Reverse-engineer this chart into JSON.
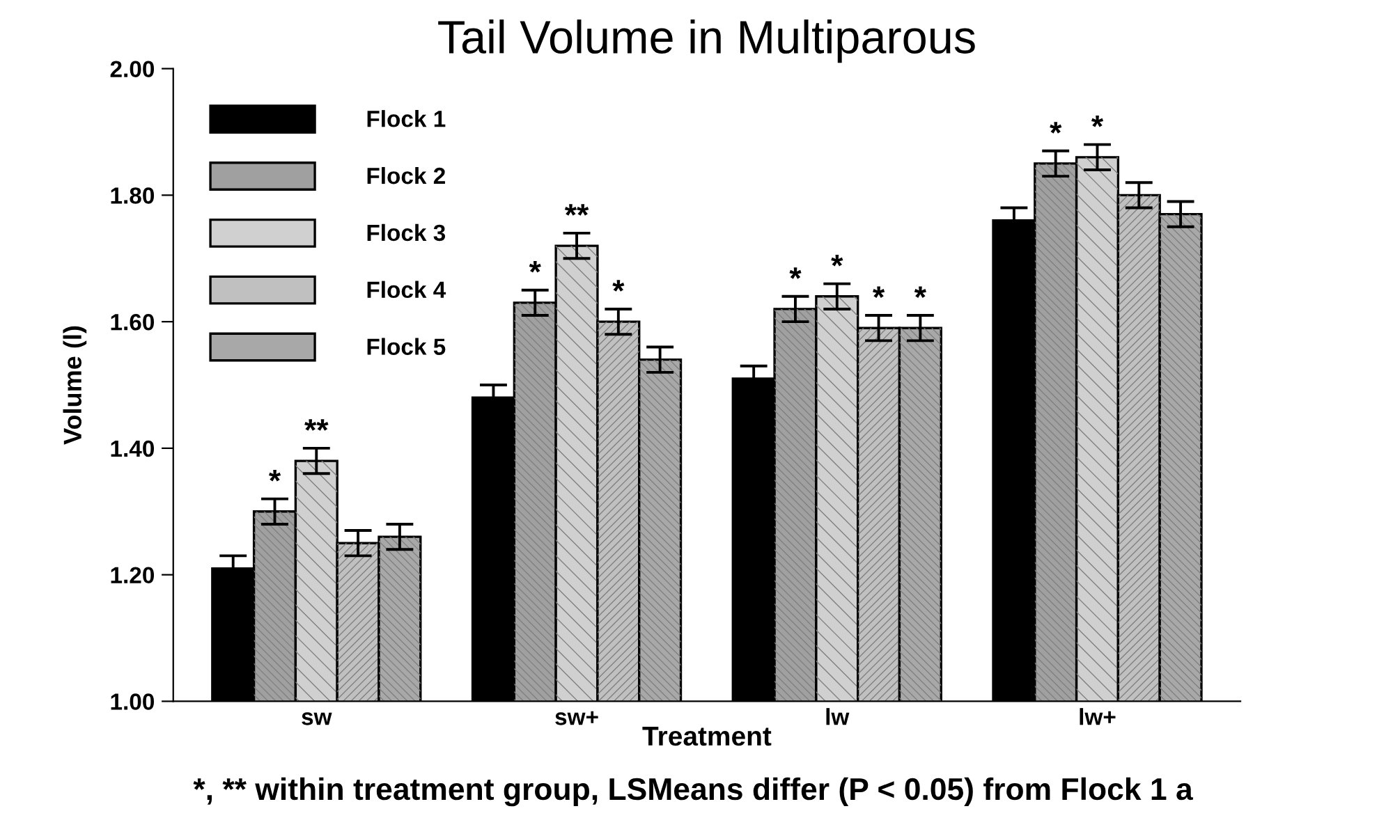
{
  "chart_data": {
    "type": "bar",
    "title": "Tail Volume in Multiparous",
    "xlabel": "Treatment",
    "ylabel": "Volume (l)",
    "categories": [
      "sw",
      "sw+",
      "lw",
      "lw+"
    ],
    "series": [
      {
        "name": "Flock 1",
        "color": "#000000",
        "values": [
          1.21,
          1.48,
          1.51,
          1.76
        ],
        "errors": [
          0.02,
          0.02,
          0.02,
          0.02
        ],
        "value_labels": [
          null,
          null,
          null,
          null
        ]
      },
      {
        "name": "Flock 2",
        "color": "#a0a0a0",
        "values": [
          1.3,
          1.63,
          1.62,
          1.85
        ],
        "errors": [
          0.02,
          0.02,
          0.02,
          0.02
        ],
        "value_labels": [
          "*",
          "*",
          "*",
          "*"
        ]
      },
      {
        "name": "Flock 3",
        "color": "#d0d0d0",
        "values": [
          1.38,
          1.72,
          1.64,
          1.86
        ],
        "errors": [
          0.02,
          0.02,
          0.02,
          0.02
        ],
        "value_labels": [
          "**",
          "**",
          "*",
          "*"
        ]
      },
      {
        "name": "Flock 4",
        "color": "#c0c0c0",
        "values": [
          1.25,
          1.6,
          1.59,
          1.8
        ],
        "errors": [
          0.02,
          0.02,
          0.02,
          0.02
        ],
        "value_labels": [
          null,
          "*",
          "*",
          null
        ]
      },
      {
        "name": "Flock 5",
        "color": "#a8a8a8",
        "values": [
          1.26,
          1.54,
          1.59,
          1.77
        ],
        "errors": [
          0.02,
          0.02,
          0.02,
          0.02
        ],
        "value_labels": [
          null,
          null,
          "*",
          null
        ]
      }
    ],
    "ylim": [
      1.0,
      2.0
    ],
    "yticks": [
      {
        "value": 1.0,
        "label": "1.00"
      },
      {
        "value": 1.2,
        "label": "1.20"
      },
      {
        "value": 1.4,
        "label": "1.40"
      },
      {
        "value": 1.6,
        "label": "1.60"
      },
      {
        "value": 1.8,
        "label": "1.80"
      },
      {
        "value": 2.0,
        "label": "2.00"
      }
    ],
    "grid": false,
    "legend": "top left",
    "annotations": [
      "*, ** within treatment group, LSMeans differ (P < 0.05) from Flock 1 a"
    ]
  }
}
